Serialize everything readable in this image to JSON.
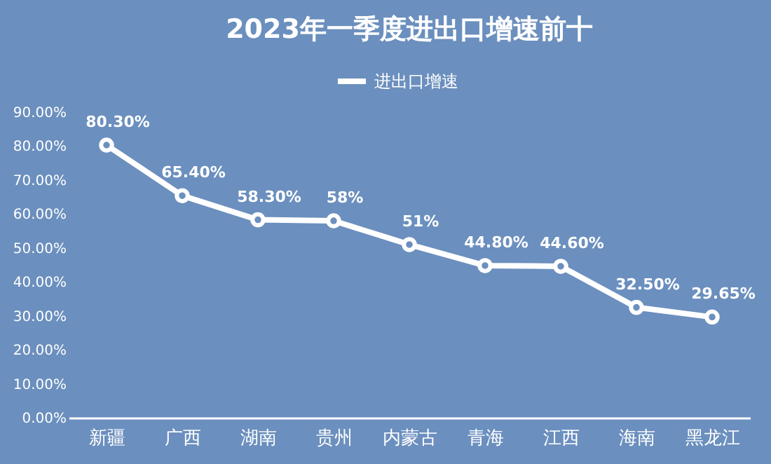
{
  "chart_data": {
    "type": "line",
    "title": "2023年一季度进出口增速前十",
    "categories": [
      "新疆",
      "广西",
      "湖南",
      "贵州",
      "内蒙古",
      "青海",
      "江西",
      "海南",
      "黑龙江"
    ],
    "series": [
      {
        "name": "进出口增速",
        "color": "#ffffff",
        "values": [
          80.3,
          65.4,
          58.3,
          58,
          51,
          44.8,
          44.6,
          32.5,
          29.65
        ],
        "value_labels": [
          "80.30%",
          "65.40%",
          "58.30%",
          "58%",
          "51%",
          "44.80%",
          "44.60%",
          "32.50%",
          "29.65%"
        ]
      }
    ],
    "ylim": [
      0,
      90
    ],
    "yticks": [
      {
        "value": 0,
        "label": "0.00%"
      },
      {
        "value": 10,
        "label": "10.00%"
      },
      {
        "value": 20,
        "label": "20.00%"
      },
      {
        "value": 30,
        "label": "30.00%"
      },
      {
        "value": 40,
        "label": "40.00%"
      },
      {
        "value": 50,
        "label": "50.00%"
      },
      {
        "value": 60,
        "label": "60.00%"
      },
      {
        "value": 70,
        "label": "70.00%"
      },
      {
        "value": 80,
        "label": "80.00%"
      },
      {
        "value": 90,
        "label": "90.00%"
      }
    ],
    "grid": false,
    "legend": "top",
    "marker": "circle",
    "line_style": "solid"
  }
}
